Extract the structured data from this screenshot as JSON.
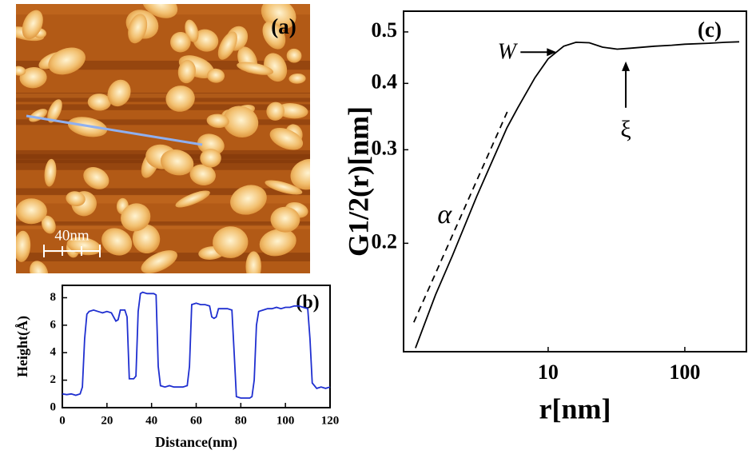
{
  "afm_image": {
    "panel_label": "(a)",
    "scale_bar_label": "40nm"
  },
  "chart_data": [
    {
      "type": "line",
      "panel_label": "(b)",
      "x_label": "Distance(nm)",
      "y_label": "Height(Å)",
      "color": "#1f2fd0",
      "x": [
        0,
        2,
        4,
        6,
        8,
        9,
        10,
        11,
        12,
        14,
        16,
        18,
        20,
        22,
        24,
        25,
        26,
        28,
        29,
        30,
        32,
        33,
        34,
        35,
        36,
        38,
        40,
        41,
        42,
        43,
        44,
        46,
        48,
        50,
        52,
        54,
        56,
        57,
        58,
        60,
        62,
        64,
        66,
        67,
        68,
        69,
        70,
        72,
        74,
        76,
        77,
        78,
        80,
        82,
        84,
        85,
        86,
        87,
        88,
        90,
        92,
        94,
        96,
        98,
        100,
        102,
        104,
        106,
        108,
        110,
        111,
        112,
        114,
        116,
        118,
        120
      ],
      "values": [
        1.0,
        0.95,
        1.0,
        0.9,
        1.0,
        1.5,
        5.0,
        6.8,
        7.0,
        7.1,
        7.0,
        6.9,
        7.0,
        6.9,
        6.3,
        6.4,
        7.1,
        7.1,
        6.6,
        2.1,
        2.1,
        2.3,
        7.0,
        8.3,
        8.4,
        8.3,
        8.3,
        8.3,
        8.2,
        3.0,
        1.6,
        1.5,
        1.6,
        1.5,
        1.5,
        1.5,
        1.6,
        3.0,
        7.5,
        7.6,
        7.5,
        7.5,
        7.4,
        6.6,
        6.5,
        6.6,
        7.2,
        7.2,
        7.2,
        7.1,
        4.0,
        0.8,
        0.7,
        0.7,
        0.7,
        0.8,
        2.0,
        6.0,
        7.0,
        7.1,
        7.2,
        7.2,
        7.3,
        7.2,
        7.3,
        7.3,
        7.4,
        7.4,
        7.3,
        7.2,
        5.0,
        1.8,
        1.4,
        1.5,
        1.4,
        1.5
      ],
      "xlim": [
        0,
        120
      ],
      "xticks": [
        0,
        20,
        40,
        60,
        80,
        100,
        120
      ],
      "ylim": [
        0,
        8.9
      ],
      "yticks": [
        0,
        2,
        4,
        6,
        8
      ]
    },
    {
      "type": "line",
      "panel_label": "(c)",
      "x_label": "r[nm]",
      "y_label": "G1/2(r)[nm]",
      "color": "#000000",
      "xscale": "log",
      "yscale": "log",
      "x": [
        1.07,
        1.5,
        2,
        3,
        4,
        5,
        6,
        8,
        10,
        13,
        16,
        20,
        25,
        32,
        40,
        60,
        80,
        100,
        150,
        200,
        250
      ],
      "values": [
        0.127,
        0.16,
        0.19,
        0.245,
        0.29,
        0.33,
        0.36,
        0.41,
        0.445,
        0.47,
        0.478,
        0.477,
        0.468,
        0.464,
        0.466,
        0.47,
        0.472,
        0.474,
        0.476,
        0.478,
        0.479
      ],
      "xlim": [
        0.875,
        290
      ],
      "xticks": [
        10,
        100
      ],
      "ylim": [
        0.125,
        0.547
      ],
      "yticks": [
        0.2,
        0.3,
        0.4,
        0.5
      ],
      "reference_line": {
        "label": "α",
        "x": [
          1.04,
          5.03
        ],
        "y": [
          0.142,
          0.354
        ]
      },
      "annotations": [
        {
          "text": "W",
          "x": 11.5,
          "y": 0.458
        },
        {
          "text": "ξ",
          "x": 37,
          "y": 0.44
        }
      ]
    }
  ]
}
